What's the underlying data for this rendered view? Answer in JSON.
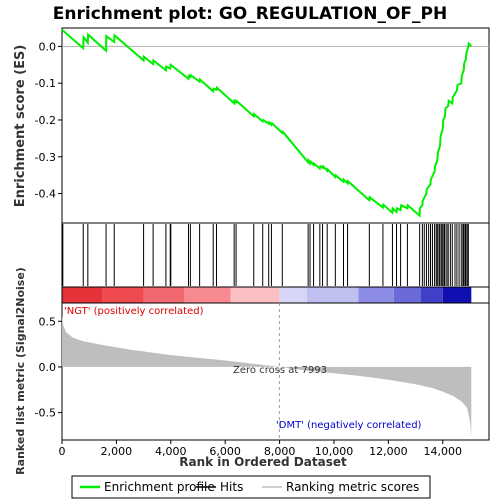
{
  "chart_data": {
    "type": "line",
    "title": "Enrichment plot: GO_REGULATION_OF_PH",
    "xlabel": "Rank in Ordered Dataset",
    "xlim": [
      0,
      15700
    ],
    "x_ticks": [
      0,
      2000,
      4000,
      6000,
      8000,
      10000,
      12000,
      14000
    ],
    "x_tick_labels": [
      "0",
      "2,000",
      "4,000",
      "6,000",
      "8,000",
      "10,000",
      "12,000",
      "14,000"
    ],
    "es_panel": {
      "ylabel": "Enrichment score (ES)",
      "ylim": [
        -0.48,
        0.05
      ],
      "y_ticks": [
        0.0,
        -0.1,
        -0.2,
        -0.3,
        -0.4
      ],
      "y_tick_labels": [
        "0.0",
        "-0.1",
        "-0.2",
        "-0.3",
        "-0.4"
      ],
      "grid": false,
      "series": [
        {
          "name": "Enrichment profile",
          "color": "#00ee00",
          "x": [
            0,
            780,
            790,
            950,
            960,
            1620,
            1630,
            1920,
            1930,
            3000,
            3010,
            3350,
            3360,
            3820,
            3830,
            3980,
            4000,
            4650,
            4660,
            4720,
            4730,
            5060,
            5070,
            5560,
            5570,
            5680,
            5690,
            6330,
            6340,
            6400,
            6410,
            7050,
            7060,
            7380,
            7400,
            7600,
            7620,
            7700,
            7720,
            8100,
            8120,
            9050,
            9060,
            9120,
            9140,
            9250,
            9260,
            9480,
            9500,
            9580,
            9600,
            9750,
            9760,
            10050,
            10060,
            10350,
            10360,
            10500,
            10510,
            11300,
            11310,
            11800,
            11810,
            12150,
            12160,
            12300,
            12320,
            12450,
            12470,
            12700,
            12710,
            13150,
            13160,
            13250,
            13260,
            13400,
            13410,
            13550,
            13560,
            13700,
            13720,
            13800,
            13820,
            13900,
            13920,
            14000,
            14020,
            14080,
            14100,
            14200,
            14220,
            14350,
            14370,
            14520,
            14540,
            14680,
            14700,
            14770,
            14790,
            14850,
            14870,
            14940,
            14960,
            15050
          ],
          "y": [
            0.045,
            -0.005,
            0.025,
            0.01,
            0.032,
            -0.012,
            0.028,
            0.012,
            0.03,
            -0.038,
            -0.028,
            -0.048,
            -0.038,
            -0.065,
            -0.055,
            -0.06,
            -0.05,
            -0.088,
            -0.08,
            -0.083,
            -0.078,
            -0.096,
            -0.09,
            -0.122,
            -0.115,
            -0.118,
            -0.112,
            -0.155,
            -0.148,
            -0.152,
            -0.148,
            -0.19,
            -0.184,
            -0.204,
            -0.2,
            -0.21,
            -0.206,
            -0.213,
            -0.209,
            -0.235,
            -0.232,
            -0.315,
            -0.31,
            -0.318,
            -0.313,
            -0.322,
            -0.318,
            -0.332,
            -0.326,
            -0.33,
            -0.326,
            -0.338,
            -0.334,
            -0.355,
            -0.35,
            -0.368,
            -0.362,
            -0.372,
            -0.366,
            -0.418,
            -0.41,
            -0.438,
            -0.43,
            -0.452,
            -0.44,
            -0.45,
            -0.44,
            -0.445,
            -0.432,
            -0.44,
            -0.432,
            -0.46,
            -0.44,
            -0.432,
            -0.42,
            -0.4,
            -0.388,
            -0.375,
            -0.362,
            -0.34,
            -0.325,
            -0.31,
            -0.288,
            -0.27,
            -0.245,
            -0.222,
            -0.2,
            -0.19,
            -0.168,
            -0.162,
            -0.148,
            -0.155,
            -0.138,
            -0.12,
            -0.105,
            -0.1,
            -0.08,
            -0.065,
            -0.045,
            -0.035,
            -0.018,
            0.0,
            0.008,
            0.0
          ]
        }
      ]
    },
    "hits_positions": [
      30,
      780,
      950,
      1620,
      1920,
      3000,
      3350,
      3820,
      3980,
      4000,
      4650,
      4720,
      5060,
      5560,
      5680,
      6330,
      6400,
      7050,
      7380,
      7600,
      7700,
      8100,
      9050,
      9120,
      9250,
      9480,
      9580,
      9750,
      10050,
      10350,
      10500,
      11300,
      11800,
      12150,
      12300,
      12450,
      12700,
      13150,
      13250,
      13320,
      13400,
      13480,
      13550,
      13620,
      13700,
      13760,
      13800,
      13860,
      13900,
      13960,
      14000,
      14050,
      14080,
      14150,
      14200,
      14280,
      14350,
      14450,
      14520,
      14600,
      14680,
      14740,
      14770,
      14820,
      14850,
      14900,
      14940
    ],
    "heatbar_bands": [
      {
        "from": 0,
        "to": 1500,
        "color": "#e8323a"
      },
      {
        "from": 1500,
        "to": 3000,
        "color": "#ee4a50"
      },
      {
        "from": 3000,
        "to": 4500,
        "color": "#f26870"
      },
      {
        "from": 4500,
        "to": 6200,
        "color": "#f78a90"
      },
      {
        "from": 6200,
        "to": 7993,
        "color": "#fbbfc2"
      },
      {
        "from": 7993,
        "to": 9000,
        "color": "#d6d6f6"
      },
      {
        "from": 9000,
        "to": 10900,
        "color": "#c0c0f0"
      },
      {
        "from": 10900,
        "to": 12200,
        "color": "#8c8ce4"
      },
      {
        "from": 12200,
        "to": 13200,
        "color": "#6a6ad8"
      },
      {
        "from": 13200,
        "to": 14000,
        "color": "#4040c8"
      },
      {
        "from": 14000,
        "to": 15050,
        "color": "#1010b0"
      }
    ],
    "metric_panel": {
      "ylabel": "Ranked list metric (Signal2Noise)",
      "ylim": [
        -0.8,
        0.7
      ],
      "y_ticks": [
        0.5,
        0.0,
        -0.5
      ],
      "y_tick_labels": [
        "0.5",
        "0.0",
        "-0.5"
      ],
      "fill_color": "#bebebe",
      "x": [
        0,
        50,
        150,
        400,
        800,
        1500,
        2500,
        4000,
        6000,
        7993,
        9000,
        10000,
        11000,
        12000,
        13000,
        13600,
        14000,
        14400,
        14700,
        14900,
        15000,
        15050
      ],
      "y": [
        0.56,
        0.45,
        0.38,
        0.32,
        0.28,
        0.24,
        0.19,
        0.13,
        0.07,
        0.0,
        -0.04,
        -0.07,
        -0.1,
        -0.14,
        -0.19,
        -0.23,
        -0.27,
        -0.32,
        -0.38,
        -0.45,
        -0.6,
        -0.76
      ]
    },
    "zero_cross_label": "Zero cross at 7993",
    "zero_cross_x": 7993,
    "ngt_label": "'NGT' (positively correlated)",
    "dmt_label": "'DMT' (negatively correlated)",
    "legend": {
      "placement": "bottom",
      "items": [
        {
          "label": "Enrichment profile",
          "color": "#00ee00",
          "kind": "line"
        },
        {
          "label": "Hits",
          "color": "#000000",
          "kind": "line"
        },
        {
          "label": "Ranking metric scores",
          "color": "#bebebe",
          "kind": "line"
        }
      ]
    }
  }
}
